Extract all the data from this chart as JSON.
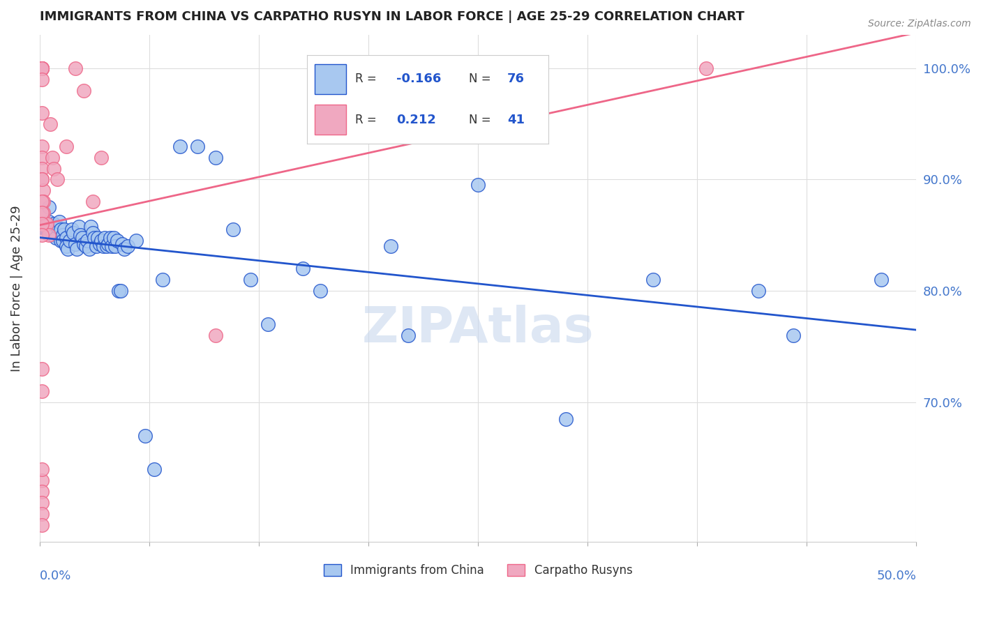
{
  "title": "IMMIGRANTS FROM CHINA VS CARPATHO RUSYN IN LABOR FORCE | AGE 25-29 CORRELATION CHART",
  "source": "Source: ZipAtlas.com",
  "ylabel": "In Labor Force | Age 25-29",
  "legend_blue_R": "-0.166",
  "legend_blue_N": "76",
  "legend_pink_R": "0.212",
  "legend_pink_N": "41",
  "blue_color": "#a8c8f0",
  "pink_color": "#f0a8c0",
  "blue_line_color": "#2255cc",
  "pink_line_color": "#ee6688",
  "watermark": "ZIPAtlas",
  "blue_points_x": [
    0.001,
    0.002,
    0.003,
    0.003,
    0.004,
    0.005,
    0.005,
    0.006,
    0.006,
    0.007,
    0.007,
    0.008,
    0.009,
    0.01,
    0.011,
    0.012,
    0.012,
    0.013,
    0.013,
    0.014,
    0.015,
    0.015,
    0.016,
    0.017,
    0.018,
    0.019,
    0.02,
    0.021,
    0.022,
    0.023,
    0.024,
    0.025,
    0.026,
    0.027,
    0.028,
    0.029,
    0.03,
    0.031,
    0.032,
    0.033,
    0.034,
    0.035,
    0.036,
    0.037,
    0.038,
    0.039,
    0.04,
    0.041,
    0.042,
    0.043,
    0.044,
    0.045,
    0.046,
    0.047,
    0.048,
    0.05,
    0.055,
    0.06,
    0.065,
    0.07,
    0.08,
    0.09,
    0.1,
    0.11,
    0.12,
    0.13,
    0.15,
    0.16,
    0.2,
    0.21,
    0.25,
    0.3,
    0.35,
    0.41,
    0.43,
    0.48
  ],
  "blue_points_y": [
    0.857,
    0.857,
    0.857,
    0.857,
    0.857,
    0.875,
    0.862,
    0.857,
    0.855,
    0.85,
    0.852,
    0.86,
    0.848,
    0.858,
    0.862,
    0.845,
    0.855,
    0.85,
    0.845,
    0.855,
    0.848,
    0.84,
    0.838,
    0.845,
    0.855,
    0.852,
    0.842,
    0.838,
    0.858,
    0.85,
    0.848,
    0.842,
    0.84,
    0.845,
    0.838,
    0.858,
    0.852,
    0.848,
    0.84,
    0.848,
    0.842,
    0.845,
    0.84,
    0.848,
    0.84,
    0.842,
    0.848,
    0.84,
    0.848,
    0.84,
    0.845,
    0.8,
    0.8,
    0.842,
    0.838,
    0.84,
    0.845,
    0.67,
    0.64,
    0.81,
    0.93,
    0.93,
    0.92,
    0.855,
    0.81,
    0.77,
    0.82,
    0.8,
    0.84,
    0.76,
    0.895,
    0.685,
    0.81,
    0.8,
    0.76,
    0.81
  ],
  "pink_points_x": [
    0.001,
    0.001,
    0.001,
    0.001,
    0.001,
    0.001,
    0.001,
    0.001,
    0.001,
    0.001,
    0.001,
    0.002,
    0.002,
    0.002,
    0.003,
    0.004,
    0.005,
    0.006,
    0.007,
    0.008,
    0.01,
    0.015,
    0.02,
    0.025,
    0.03,
    0.035,
    0.1,
    0.001,
    0.001,
    0.001,
    0.001,
    0.001,
    0.001,
    0.001,
    0.001,
    0.001,
    0.001,
    0.001,
    0.001,
    0.001,
    0.38
  ],
  "pink_points_y": [
    1.0,
    1.0,
    1.0,
    1.0,
    1.0,
    0.99,
    0.96,
    0.93,
    0.92,
    0.91,
    0.9,
    0.89,
    0.88,
    0.87,
    0.86,
    0.86,
    0.85,
    0.95,
    0.92,
    0.91,
    0.9,
    0.93,
    1.0,
    0.98,
    0.88,
    0.92,
    0.76,
    0.73,
    0.71,
    0.63,
    0.64,
    0.62,
    0.61,
    0.6,
    0.59,
    0.9,
    0.88,
    0.87,
    0.86,
    0.85,
    1.0
  ]
}
